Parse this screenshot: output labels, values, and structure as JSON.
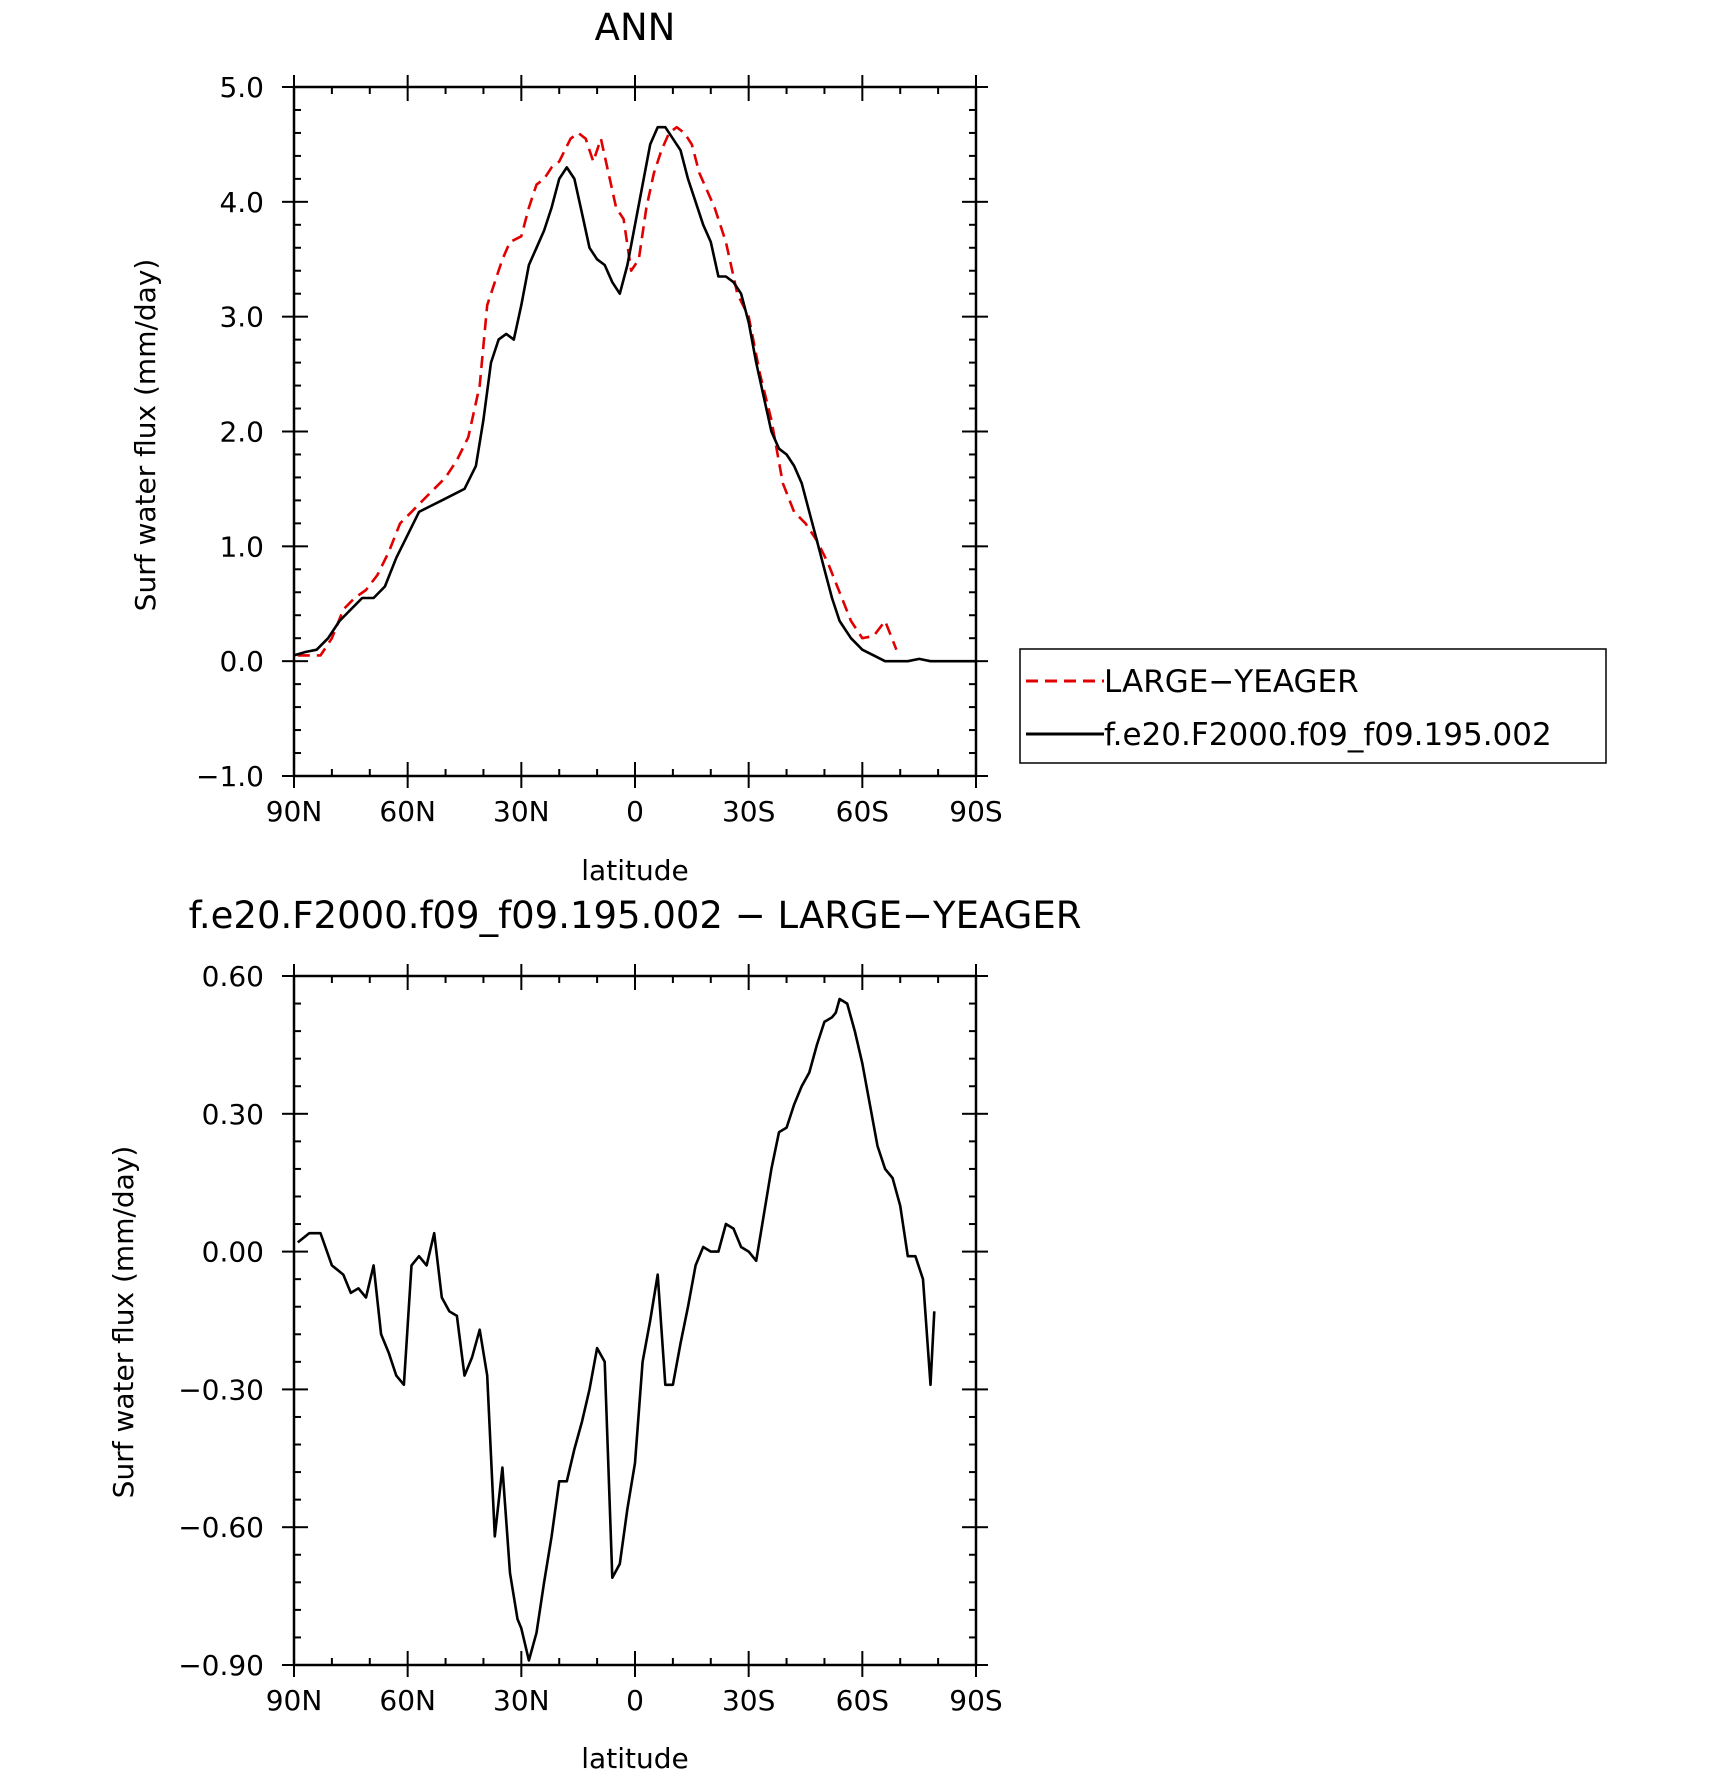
{
  "top": {
    "title": "ANN",
    "ylabel": "Surf water flux (mm/day)",
    "xlabel": "latitude",
    "legend": [
      "LARGE-YEAGER",
      "f.e20.F2000.f09_f09.195.002"
    ]
  },
  "bottom": {
    "title": "f.e20.F2000.f09_f09.195.002 - LARGE-YEAGER",
    "ylabel": "Surf water flux (mm/day)",
    "xlabel": "latitude"
  },
  "chart_data": [
    {
      "type": "line",
      "title": "ANN",
      "xlabel": "latitude",
      "ylabel": "Surf water flux (mm/day)",
      "xlim": [
        90,
        -90
      ],
      "ylim": [
        -1.0,
        5.0
      ],
      "xticks": [
        90,
        60,
        30,
        0,
        -30,
        -60,
        -90
      ],
      "xtick_labels": [
        "90N",
        "60N",
        "30N",
        "0",
        "30S",
        "60S",
        "90S"
      ],
      "yticks": [
        -1.0,
        0.0,
        1.0,
        2.0,
        3.0,
        4.0,
        5.0
      ],
      "ytick_labels": [
        "-1.0",
        "0.0",
        "1.0",
        "2.0",
        "3.0",
        "4.0",
        "5.0"
      ],
      "grid": false,
      "legend_position": "right, outside plot",
      "series": [
        {
          "name": "LARGE-YEAGER",
          "color": "#e00000",
          "dash": true,
          "x": [
            89,
            86,
            83,
            80,
            77,
            74,
            71,
            68,
            65,
            62,
            59,
            56,
            53,
            50,
            47,
            44,
            41,
            39,
            37,
            35,
            33,
            30,
            28,
            26,
            24,
            22,
            20,
            17,
            15,
            13,
            11,
            9,
            7,
            5,
            3,
            1,
            -1,
            -3,
            -5,
            -7,
            -9,
            -11,
            -13,
            -15,
            -17,
            -19,
            -21,
            -24,
            -27,
            -30,
            -33,
            -36,
            -39,
            -42,
            -45,
            -48,
            -51,
            -54,
            -57,
            -60,
            -63,
            -66,
            -69,
            -72,
            -75,
            -78,
            -79
          ],
          "y": [
            0.05,
            0.05,
            0.05,
            0.2,
            0.45,
            0.55,
            0.62,
            0.75,
            0.95,
            1.2,
            1.3,
            1.4,
            1.5,
            1.6,
            1.75,
            1.95,
            2.4,
            3.1,
            3.3,
            3.5,
            3.65,
            3.7,
            3.95,
            4.15,
            4.2,
            4.3,
            4.35,
            4.55,
            4.6,
            4.55,
            4.35,
            4.55,
            4.25,
            3.95,
            3.85,
            3.4,
            3.5,
            3.95,
            4.25,
            4.45,
            4.6,
            4.65,
            4.6,
            4.5,
            4.25,
            4.1,
            3.95,
            3.65,
            3.2,
            3.0,
            2.5,
            2.1,
            1.55,
            1.3,
            1.2,
            1.05,
            0.85,
            0.6,
            0.35,
            0.2,
            0.22,
            0.35,
            0.1,
            null,
            null,
            null,
            null
          ]
        },
        {
          "name": "f.e20.F2000.f09_f09.195.002",
          "color": "#000000",
          "dash": false,
          "x": [
            90,
            87,
            84,
            81,
            78,
            75,
            72,
            69,
            66,
            63,
            60,
            57,
            54,
            51,
            48,
            45,
            42,
            40,
            38,
            36,
            34,
            32,
            30,
            28,
            26,
            24,
            22,
            20,
            18,
            16,
            14,
            12,
            10,
            8,
            6,
            4,
            2,
            0,
            -2,
            -4,
            -6,
            -8,
            -10,
            -12,
            -14,
            -16,
            -18,
            -20,
            -22,
            -24,
            -26,
            -28,
            -30,
            -32,
            -34,
            -36,
            -38,
            -40,
            -42,
            -44,
            -46,
            -48,
            -50,
            -52,
            -54,
            -57,
            -60,
            -63,
            -66,
            -69,
            -72,
            -75,
            -78,
            -81,
            -84,
            -87,
            -90
          ],
          "y": [
            0.05,
            0.08,
            0.1,
            0.2,
            0.35,
            0.45,
            0.55,
            0.55,
            0.65,
            0.9,
            1.1,
            1.3,
            1.35,
            1.4,
            1.45,
            1.5,
            1.7,
            2.1,
            2.6,
            2.8,
            2.85,
            2.8,
            3.1,
            3.45,
            3.6,
            3.75,
            3.95,
            4.2,
            4.3,
            4.2,
            3.9,
            3.6,
            3.5,
            3.45,
            3.3,
            3.2,
            3.45,
            3.8,
            4.15,
            4.5,
            4.65,
            4.65,
            4.55,
            4.45,
            4.2,
            4.0,
            3.8,
            3.65,
            3.35,
            3.35,
            3.3,
            3.2,
            2.95,
            2.6,
            2.3,
            2.0,
            1.85,
            1.8,
            1.7,
            1.55,
            1.3,
            1.05,
            0.8,
            0.55,
            0.35,
            0.2,
            0.1,
            0.05,
            0.0,
            0.0,
            0.0,
            0.02,
            0.0,
            0.0,
            0.0,
            0.0,
            0.0
          ]
        }
      ]
    },
    {
      "type": "line",
      "title": "f.e20.F2000.f09_f09.195.002 - LARGE-YEAGER",
      "xlabel": "latitude",
      "ylabel": "Surf water flux (mm/day)",
      "xlim": [
        90,
        -90
      ],
      "ylim": [
        -0.9,
        0.6
      ],
      "xticks": [
        90,
        60,
        30,
        0,
        -30,
        -60,
        -90
      ],
      "xtick_labels": [
        "90N",
        "60N",
        "30N",
        "0",
        "30S",
        "60S",
        "90S"
      ],
      "yticks": [
        -0.9,
        -0.6,
        -0.3,
        0.0,
        0.3,
        0.6
      ],
      "ytick_labels": [
        "-0.90",
        "-0.60",
        "-0.30",
        "0.00",
        "0.30",
        "0.60"
      ],
      "grid": false,
      "series": [
        {
          "color": "#000000",
          "dash": false,
          "x": [
            89,
            86,
            83,
            80,
            77,
            75,
            73,
            71,
            69,
            67,
            65,
            63,
            61,
            59,
            57,
            55,
            53,
            51,
            49,
            47,
            45,
            43,
            41,
            39,
            37,
            35,
            33,
            31,
            30,
            28,
            26,
            24,
            22,
            20,
            18,
            16,
            14,
            12,
            10,
            8,
            6,
            4,
            2,
            0,
            -2,
            -4,
            -6,
            -8,
            -10,
            -12,
            -14,
            -16,
            -18,
            -20,
            -22,
            -24,
            -26,
            -28,
            -30,
            -32,
            -34,
            -36,
            -38,
            -40,
            -42,
            -44,
            -46,
            -48,
            -50,
            -52,
            -53,
            -54,
            -56,
            -58,
            -60,
            -62,
            -64,
            -66,
            -68,
            -70,
            -72,
            -74,
            -76,
            -78,
            -79
          ],
          "y": [
            0.02,
            0.04,
            0.04,
            -0.03,
            -0.05,
            -0.09,
            -0.08,
            -0.1,
            -0.03,
            -0.18,
            -0.22,
            -0.27,
            -0.29,
            -0.03,
            -0.01,
            -0.03,
            0.04,
            -0.1,
            -0.13,
            -0.14,
            -0.27,
            -0.23,
            -0.17,
            -0.27,
            -0.62,
            -0.47,
            -0.7,
            -0.8,
            -0.82,
            -0.89,
            -0.83,
            -0.72,
            -0.62,
            -0.5,
            -0.5,
            -0.43,
            -0.37,
            -0.3,
            -0.21,
            -0.24,
            -0.71,
            -0.68,
            -0.56,
            -0.46,
            -0.24,
            -0.15,
            -0.05,
            -0.29,
            -0.29,
            -0.2,
            -0.12,
            -0.03,
            0.01,
            0.0,
            0.0,
            0.06,
            0.05,
            0.01,
            0.0,
            -0.02,
            0.08,
            0.18,
            0.26,
            0.27,
            0.32,
            0.36,
            0.39,
            0.45,
            0.5,
            0.51,
            0.52,
            0.55,
            0.54,
            0.48,
            0.41,
            0.32,
            0.23,
            0.18,
            0.16,
            0.1,
            -0.01,
            -0.01,
            -0.06,
            -0.29,
            -0.13
          ]
        }
      ]
    }
  ]
}
